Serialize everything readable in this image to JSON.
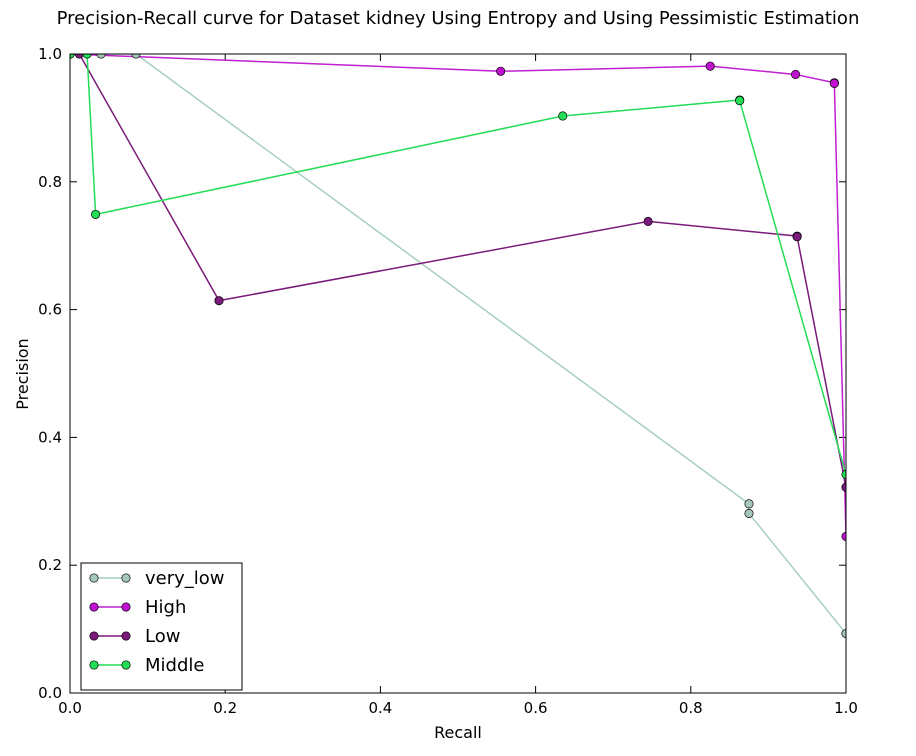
{
  "chart_data": {
    "type": "line",
    "title": "Precision-Recall curve for Dataset kidney Using Entropy and Using Pessimistic Estimation",
    "xlabel": "Recall",
    "ylabel": "Precision",
    "xlim": [
      0.0,
      1.0
    ],
    "ylim": [
      0.0,
      1.0
    ],
    "xticks": [
      "0.0",
      "0.2",
      "0.4",
      "0.6",
      "0.8",
      "1.0"
    ],
    "yticks": [
      "0.0",
      "0.2",
      "0.4",
      "0.6",
      "0.8",
      "1.0"
    ],
    "grid": false,
    "legend_position": "bottom-left",
    "series": [
      {
        "name": "very_low",
        "color": "#a6cfc0",
        "marker_color": "#a6c8ba",
        "points": [
          [
            0.0,
            1.0
          ],
          [
            0.04,
            1.0
          ],
          [
            0.085,
            1.0
          ],
          [
            0.875,
            0.296
          ],
          [
            0.875,
            0.281
          ],
          [
            1.0,
            0.093
          ]
        ]
      },
      {
        "name": "High",
        "color": "#c020d0",
        "marker_color": "#c010d0",
        "points": [
          [
            0.0,
            1.0
          ],
          [
            0.555,
            0.973
          ],
          [
            0.825,
            0.981
          ],
          [
            0.935,
            0.968
          ],
          [
            0.985,
            0.955
          ],
          [
            0.985,
            0.954
          ],
          [
            1.0,
            0.245
          ]
        ]
      },
      {
        "name": "Low",
        "color": "#7a1a7a",
        "marker_color": "#7a1a7a",
        "points": [
          [
            0.0,
            1.0
          ],
          [
            0.012,
            1.0
          ],
          [
            0.192,
            0.614
          ],
          [
            0.745,
            0.738
          ],
          [
            0.937,
            0.715
          ],
          [
            0.937,
            0.714
          ],
          [
            1.0,
            0.322
          ]
        ]
      },
      {
        "name": "Middle",
        "color": "#22dd55",
        "marker_color": "#22dd55",
        "points": [
          [
            0.0,
            1.0
          ],
          [
            0.022,
            1.0
          ],
          [
            0.033,
            0.749
          ],
          [
            0.635,
            0.903
          ],
          [
            0.863,
            0.928
          ],
          [
            0.863,
            0.927
          ],
          [
            1.0,
            0.342
          ]
        ]
      }
    ]
  }
}
